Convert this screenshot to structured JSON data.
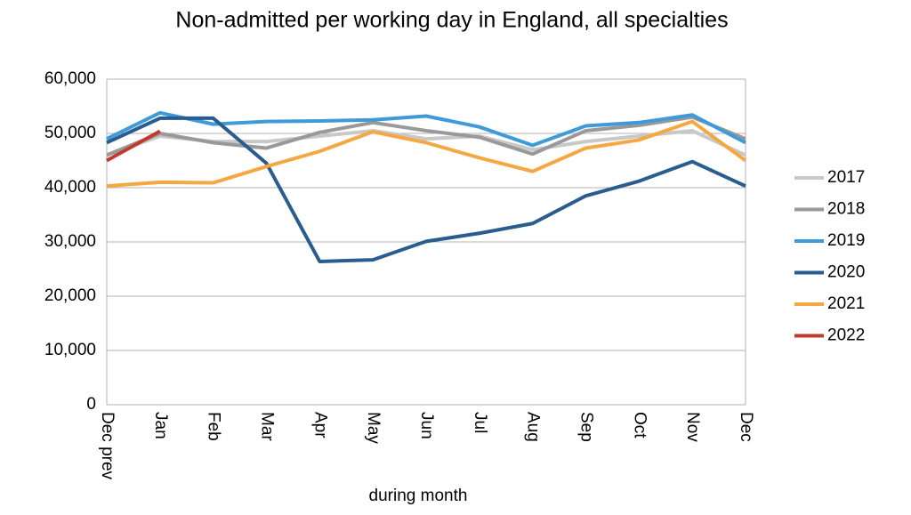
{
  "chart_data": {
    "type": "line",
    "title": "Non-admitted per working day in England, all specialties",
    "x_label": "during month",
    "categories": [
      "Dec prev",
      "Jan",
      "Feb",
      "Mar",
      "Apr",
      "May",
      "Jun",
      "Jul",
      "Aug",
      "Sep",
      "Oct",
      "Nov",
      "Dec"
    ],
    "series": [
      {
        "name": "2017",
        "color": "#c8c8c8",
        "values": [
          46000,
          49500,
          48500,
          48500,
          49500,
          50500,
          49000,
          49500,
          47000,
          48500,
          49500,
          50500,
          46000
        ]
      },
      {
        "name": "2018",
        "color": "#999999",
        "values": [
          46000,
          50000,
          48300,
          47300,
          50200,
          52000,
          50500,
          49300,
          46200,
          50500,
          51500,
          53000,
          49000
        ]
      },
      {
        "name": "2019",
        "color": "#3e9ad8",
        "values": [
          49000,
          53800,
          51700,
          52200,
          52300,
          52500,
          53200,
          51200,
          47800,
          51400,
          52000,
          53400,
          48300
        ]
      },
      {
        "name": "2020",
        "color": "#2a5d8f",
        "values": [
          48300,
          52800,
          52800,
          44500,
          26400,
          26700,
          30100,
          31600,
          33400,
          38500,
          41200,
          44800,
          40300
        ]
      },
      {
        "name": "2021",
        "color": "#f5a742",
        "values": [
          40300,
          41000,
          40900,
          43900,
          46700,
          50300,
          48300,
          45500,
          43000,
          47300,
          48800,
          52200,
          45000
        ]
      },
      {
        "name": "2022",
        "color": "#c0392b",
        "values": [
          45000,
          50400,
          null,
          null,
          null,
          null,
          null,
          null,
          null,
          null,
          null,
          null,
          null
        ]
      }
    ],
    "ylim": [
      0,
      60000
    ],
    "yticks": [
      0,
      {
        "value": 10000,
        "label": "10,000"
      },
      {
        "value": 20000,
        "label": "20,000"
      },
      {
        "value": 30000,
        "label": "30,000"
      },
      {
        "value": 40000,
        "label": "40,000"
      },
      {
        "value": 50000,
        "label": "50,000"
      },
      {
        "value": 60000,
        "label": "60,000"
      }
    ],
    "grid": true,
    "legend": "right"
  }
}
